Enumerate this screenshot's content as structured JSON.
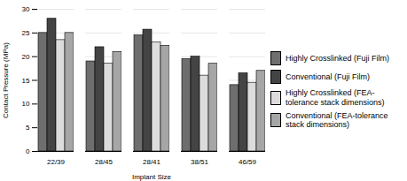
{
  "chart_data": {
    "type": "bar",
    "categories": [
      "22/39",
      "28/45",
      "28/41",
      "38/51",
      "46/59"
    ],
    "series": [
      {
        "name": "Highly Crosslinked (Fuji Film)",
        "color": "#6e6e6e",
        "values": [
          25,
          19,
          24.5,
          19.5,
          14
        ]
      },
      {
        "name": "Conventional (Fuji Film)",
        "color": "#444444",
        "values": [
          28,
          22,
          25.7,
          20,
          16.5
        ]
      },
      {
        "name": "Highly Crosslinked (FEA-tolerance stack dimensions)",
        "color": "#dcdcdc",
        "values": [
          23.5,
          18.5,
          23,
          16,
          14.5
        ]
      },
      {
        "name": "Conventional (FEA-tolerance stack dimensions)",
        "color": "#a6a6a6",
        "values": [
          25,
          21,
          22.3,
          18.5,
          17
        ]
      }
    ],
    "x_label": "Implant Size",
    "y_label": "Contact Pressure (MPa)",
    "ylim": [
      0,
      30
    ],
    "yticks": [
      0,
      5,
      10,
      15,
      20,
      25,
      30
    ],
    "grid": true,
    "legend": "right"
  }
}
